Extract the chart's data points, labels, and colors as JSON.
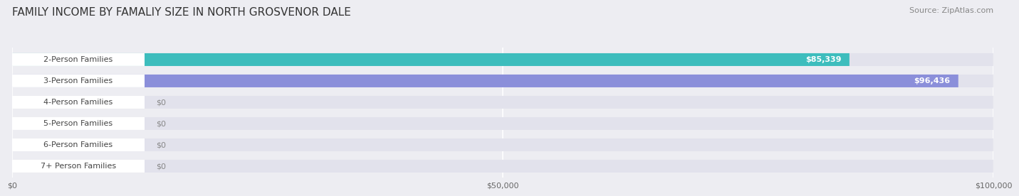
{
  "title": "FAMILY INCOME BY FAMALIY SIZE IN NORTH GROSVENOR DALE",
  "source": "Source: ZipAtlas.com",
  "categories": [
    "2-Person Families",
    "3-Person Families",
    "4-Person Families",
    "5-Person Families",
    "6-Person Families",
    "7+ Person Families"
  ],
  "values": [
    85339,
    96436,
    0,
    0,
    0,
    0
  ],
  "bar_colors": [
    "#3dbdbd",
    "#8b8fda",
    "#f0a0b8",
    "#f5c898",
    "#f0a0a8",
    "#a8c8f0"
  ],
  "value_labels": [
    "$85,339",
    "$96,436",
    "$0",
    "$0",
    "$0",
    "$0"
  ],
  "xlim": [
    0,
    100000
  ],
  "xticks": [
    0,
    50000,
    100000
  ],
  "xticklabels": [
    "$0",
    "$50,000",
    "$100,000"
  ],
  "background_color": "#ededf2",
  "bar_bg_color": "#e2e2ec",
  "title_fontsize": 11,
  "source_fontsize": 8,
  "label_fontsize": 8,
  "value_fontsize": 8
}
